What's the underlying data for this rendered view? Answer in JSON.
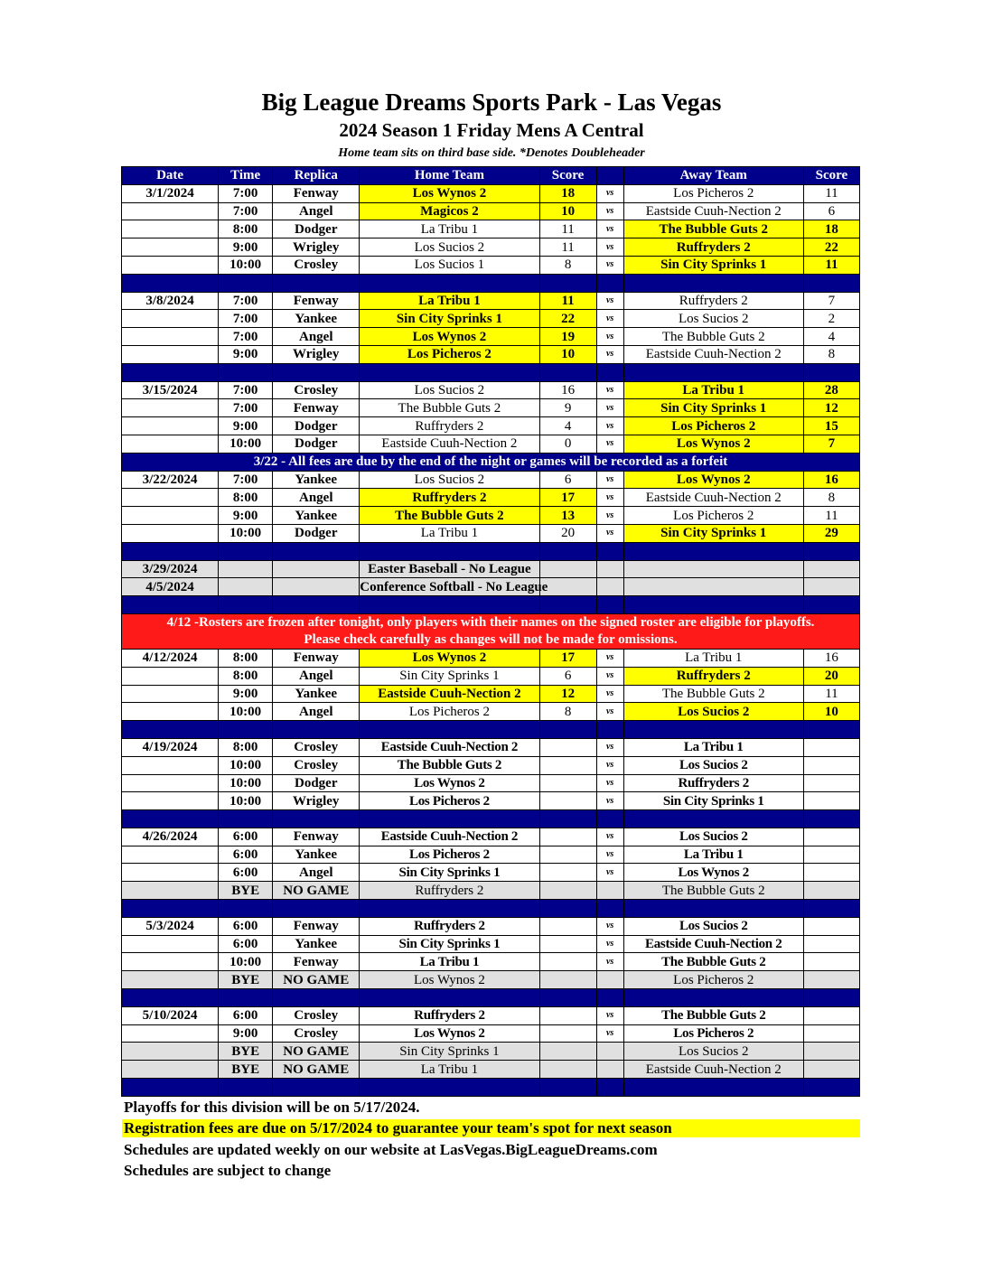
{
  "title": "Big League Dreams Sports Park - Las Vegas",
  "subtitle": "2024 Season 1 Friday Mens A Central",
  "note": "Home team sits on third base side.  *Denotes Doubleheader",
  "headers": [
    "Date",
    "Time",
    "Replica",
    "Home Team",
    "Score",
    "",
    "Away Team",
    "Score"
  ],
  "vs_label": "vs",
  "colors": {
    "header": "#00008b",
    "winner": "#ffff00",
    "alert": "#ff1a1a",
    "bye": "#e0e0e0"
  },
  "rows": [
    {
      "t": "g",
      "d": "3/1/2024",
      "tm": "7:00",
      "r": "Fenway",
      "h": "Los Wynos 2",
      "hs": "18",
      "a": "Los Picheros 2",
      "as": "11",
      "w": "h"
    },
    {
      "t": "g",
      "d": "",
      "tm": "7:00",
      "r": "Angel",
      "h": "Magicos 2",
      "hs": "10",
      "a": "Eastside Cuuh-Nection 2",
      "as": "6",
      "w": "h"
    },
    {
      "t": "g",
      "d": "",
      "tm": "8:00",
      "r": "Dodger",
      "h": "La Tribu 1",
      "hs": "11",
      "a": "The Bubble Guts 2",
      "as": "18",
      "w": "a"
    },
    {
      "t": "g",
      "d": "",
      "tm": "9:00",
      "r": "Wrigley",
      "h": "Los Sucios 2",
      "hs": "11",
      "a": "Ruffryders 2",
      "as": "22",
      "w": "a"
    },
    {
      "t": "g",
      "d": "",
      "tm": "10:00",
      "r": "Crosley",
      "h": "Los Sucios 1",
      "hs": "8",
      "a": "Sin City Sprinks 1",
      "as": "11",
      "w": "a"
    },
    {
      "t": "s"
    },
    {
      "t": "g",
      "d": "3/8/2024",
      "tm": "7:00",
      "r": "Fenway",
      "h": "La Tribu 1",
      "hs": "11",
      "a": "Ruffryders 2",
      "as": "7",
      "w": "h"
    },
    {
      "t": "g",
      "d": "",
      "tm": "7:00",
      "r": "Yankee",
      "h": "Sin City Sprinks 1",
      "hs": "22",
      "a": "Los Sucios 2",
      "as": "2",
      "w": "h"
    },
    {
      "t": "g",
      "d": "",
      "tm": "7:00",
      "r": "Angel",
      "h": "Los Wynos 2",
      "hs": "19",
      "a": "The Bubble Guts 2",
      "as": "4",
      "w": "h"
    },
    {
      "t": "g",
      "d": "",
      "tm": "9:00",
      "r": "Wrigley",
      "h": "Los Picheros 2",
      "hs": "10",
      "a": "Eastside Cuuh-Nection 2",
      "as": "8",
      "w": "h"
    },
    {
      "t": "s"
    },
    {
      "t": "g",
      "d": "3/15/2024",
      "tm": "7:00",
      "r": "Crosley",
      "h": "Los Sucios 2",
      "hs": "16",
      "a": "La Tribu 1",
      "as": "28",
      "w": "a"
    },
    {
      "t": "g",
      "d": "",
      "tm": "7:00",
      "r": "Fenway",
      "h": "The Bubble Guts 2",
      "hs": "9",
      "a": "Sin City Sprinks 1",
      "as": "12",
      "w": "a"
    },
    {
      "t": "g",
      "d": "",
      "tm": "9:00",
      "r": "Dodger",
      "h": "Ruffryders 2",
      "hs": "4",
      "a": "Los Picheros 2",
      "as": "15",
      "w": "a"
    },
    {
      "t": "g",
      "d": "",
      "tm": "10:00",
      "r": "Dodger",
      "h": "Eastside Cuuh-Nection 2",
      "hs": "0",
      "a": "Los Wynos 2",
      "as": "7",
      "w": "a"
    },
    {
      "t": "n",
      "text": "3/22 - All fees are due by the end of the night or games will be recorded as a forfeit"
    },
    {
      "t": "g",
      "d": "3/22/2024",
      "tm": "7:00",
      "r": "Yankee",
      "h": "Los Sucios 2",
      "hs": "6",
      "a": "Los Wynos 2",
      "as": "16",
      "w": "a"
    },
    {
      "t": "g",
      "d": "",
      "tm": "8:00",
      "r": "Angel",
      "h": "Ruffryders 2",
      "hs": "17",
      "a": "Eastside Cuuh-Nection 2",
      "as": "8",
      "w": "h"
    },
    {
      "t": "g",
      "d": "",
      "tm": "9:00",
      "r": "Yankee",
      "h": "The Bubble Guts 2",
      "hs": "13",
      "a": "Los Picheros 2",
      "as": "11",
      "w": "h"
    },
    {
      "t": "g",
      "d": "",
      "tm": "10:00",
      "r": "Dodger",
      "h": "La Tribu 1",
      "hs": "20",
      "a": "Sin City Sprinks 1",
      "as": "29",
      "w": "a"
    },
    {
      "t": "s"
    },
    {
      "t": "x",
      "d": "3/29/2024",
      "text": "Easter Baseball - No League"
    },
    {
      "t": "x",
      "d": "4/5/2024",
      "text": "Conference Softball - No League"
    },
    {
      "t": "s"
    },
    {
      "t": "r",
      "text": "4/12 -Rosters are frozen after tonight, only players with their names on the signed roster are eligible for playoffs.",
      "text2": "Please check carefully as changes will not be made for omissions."
    },
    {
      "t": "g",
      "d": "4/12/2024",
      "tm": "8:00",
      "r": "Fenway",
      "h": "Los Wynos 2",
      "hs": "17",
      "a": "La Tribu 1",
      "as": "16",
      "w": "h"
    },
    {
      "t": "g",
      "d": "",
      "tm": "8:00",
      "r": "Angel",
      "h": "Sin City Sprinks 1",
      "hs": "6",
      "a": "Ruffryders 2",
      "as": "20",
      "w": "a"
    },
    {
      "t": "g",
      "d": "",
      "tm": "9:00",
      "r": "Yankee",
      "h": "Eastside Cuuh-Nection 2",
      "hs": "12",
      "a": "The Bubble Guts 2",
      "as": "11",
      "w": "h"
    },
    {
      "t": "g",
      "d": "",
      "tm": "10:00",
      "r": "Angel",
      "h": "Los Picheros 2",
      "hs": "8",
      "a": "Los Sucios 2",
      "as": "10",
      "w": "a"
    },
    {
      "t": "s"
    },
    {
      "t": "g",
      "d": "4/19/2024",
      "tm": "8:00",
      "r": "Crosley",
      "h": "Eastside Cuuh-Nection 2",
      "hs": "",
      "a": "La Tribu 1",
      "as": "",
      "w": ""
    },
    {
      "t": "g",
      "d": "",
      "tm": "10:00",
      "r": "Crosley",
      "h": "The Bubble Guts 2",
      "hs": "",
      "a": "Los Sucios 2",
      "as": "",
      "w": ""
    },
    {
      "t": "g",
      "d": "",
      "tm": "10:00",
      "r": "Dodger",
      "h": "Los Wynos 2",
      "hs": "",
      "a": "Ruffryders 2",
      "as": "",
      "w": ""
    },
    {
      "t": "g",
      "d": "",
      "tm": "10:00",
      "r": "Wrigley",
      "h": "Los Picheros 2",
      "hs": "",
      "a": "Sin City Sprinks 1",
      "as": "",
      "w": ""
    },
    {
      "t": "s"
    },
    {
      "t": "g",
      "d": "4/26/2024",
      "tm": "6:00",
      "r": "Fenway",
      "h": "Eastside Cuuh-Nection 2",
      "hs": "",
      "a": "Los Sucios 2",
      "as": "",
      "w": ""
    },
    {
      "t": "g",
      "d": "",
      "tm": "6:00",
      "r": "Yankee",
      "h": "Los Picheros 2",
      "hs": "",
      "a": "La Tribu 1",
      "as": "",
      "w": ""
    },
    {
      "t": "g",
      "d": "",
      "tm": "6:00",
      "r": "Angel",
      "h": "Sin City Sprinks 1",
      "hs": "",
      "a": "Los Wynos 2",
      "as": "",
      "w": ""
    },
    {
      "t": "b",
      "tm": "BYE",
      "r": "NO GAME",
      "h": "Ruffryders 2",
      "a": "The Bubble Guts 2"
    },
    {
      "t": "s"
    },
    {
      "t": "g",
      "d": "5/3/2024",
      "tm": "6:00",
      "r": "Fenway",
      "h": "Ruffryders 2",
      "hs": "",
      "a": "Los Sucios 2",
      "as": "",
      "w": ""
    },
    {
      "t": "g",
      "d": "",
      "tm": "6:00",
      "r": "Yankee",
      "h": "Sin City Sprinks 1",
      "hs": "",
      "a": "Eastside Cuuh-Nection 2",
      "as": "",
      "w": ""
    },
    {
      "t": "g",
      "d": "",
      "tm": "10:00",
      "r": "Fenway",
      "h": "La Tribu 1",
      "hs": "",
      "a": "The Bubble Guts 2",
      "as": "",
      "w": ""
    },
    {
      "t": "b",
      "tm": "BYE",
      "r": "NO GAME",
      "h": "Los Wynos 2",
      "a": "Los Picheros 2"
    },
    {
      "t": "s"
    },
    {
      "t": "g",
      "d": "5/10/2024",
      "tm": "6:00",
      "r": "Crosley",
      "h": "Ruffryders 2",
      "hs": "",
      "a": "The Bubble Guts 2",
      "as": "",
      "w": ""
    },
    {
      "t": "g",
      "d": "",
      "tm": "9:00",
      "r": "Crosley",
      "h": "Los Wynos 2",
      "hs": "",
      "a": "Los Picheros 2",
      "as": "",
      "w": ""
    },
    {
      "t": "b",
      "tm": "BYE",
      "r": "NO GAME",
      "h": "Sin City Sprinks 1",
      "a": "Los Sucios 2"
    },
    {
      "t": "b",
      "tm": "BYE",
      "r": "NO GAME",
      "h": "La Tribu 1",
      "a": "Eastside Cuuh-Nection 2"
    },
    {
      "t": "s"
    }
  ],
  "footer": [
    "Playoffs for this division will be on 5/17/2024.",
    "Registration fees are due on 5/17/2024 to guarantee your team's spot for next season",
    "Schedules are updated weekly on our website at LasVegas.BigLeagueDreams.com",
    "Schedules are subject to change"
  ]
}
